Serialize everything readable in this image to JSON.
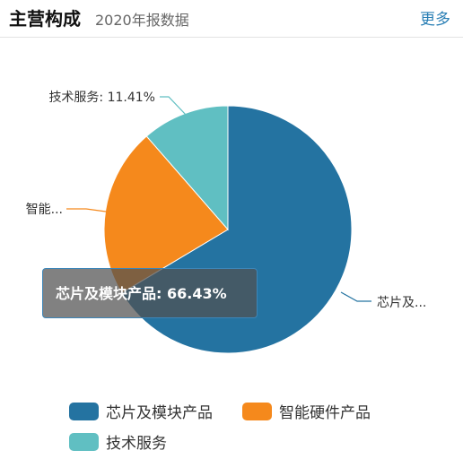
{
  "header": {
    "title": "主营构成",
    "subtitle": "2020年报数据",
    "more_label": "更多"
  },
  "tooltip": {
    "text": "芯片及模块产品: 66.43%"
  },
  "chart_data": {
    "type": "pie",
    "unit": "%",
    "slices": [
      {
        "name": "芯片及模块产品",
        "value": 66.43,
        "color": "#2473a1",
        "callout": "芯片及..."
      },
      {
        "name": "智能硬件产品",
        "value": 22.16,
        "color": "#f5891c",
        "callout": "智能..."
      },
      {
        "name": "技术服务",
        "value": 11.41,
        "color": "#60bfc2",
        "callout": "技术服务: 11.41%"
      }
    ]
  }
}
